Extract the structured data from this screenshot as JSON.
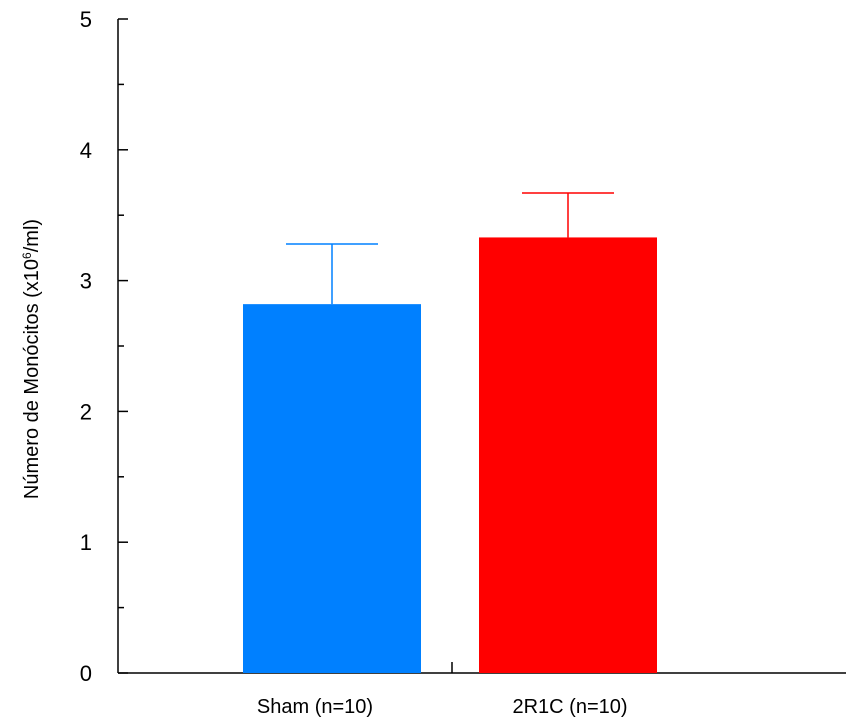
{
  "chart_data": {
    "type": "bar",
    "title": "",
    "ylabel_main": "Número de Monócitos (x10",
    "ylabel_sup": "6",
    "ylabel_unit": "/ml)",
    "xlabel": "",
    "ylim": [
      0,
      5
    ],
    "yticks": [
      "0",
      "1",
      "2",
      "3",
      "4",
      "5"
    ],
    "categories": [
      "Sham (n=10)",
      "2R1C (n=10)"
    ],
    "values": [
      2.82,
      3.33
    ],
    "error": [
      0.46,
      0.34
    ],
    "colors": [
      "#0080FF",
      "#FF0000"
    ],
    "grid": false
  }
}
